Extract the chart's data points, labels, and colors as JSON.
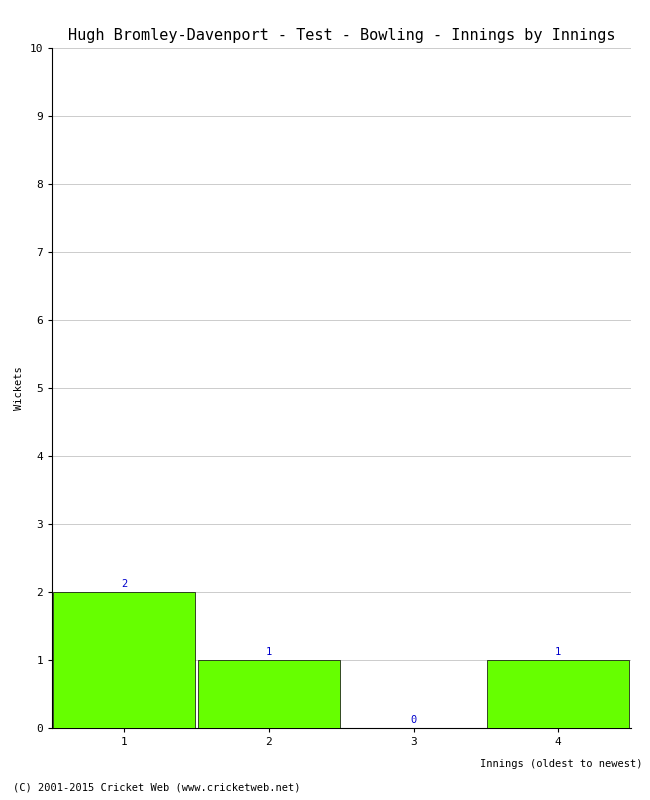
{
  "title": "Hugh Bromley-Davenport - Test - Bowling - Innings by Innings",
  "xlabel": "Innings (oldest to newest)",
  "ylabel": "Wickets",
  "categories": [
    1,
    2,
    3,
    4
  ],
  "values": [
    2,
    1,
    0,
    1
  ],
  "bar_color": "#66ff00",
  "bar_edge_color": "#000000",
  "ylim": [
    0,
    10
  ],
  "yticks": [
    0,
    1,
    2,
    3,
    4,
    5,
    6,
    7,
    8,
    9,
    10
  ],
  "xticks": [
    1,
    2,
    3,
    4
  ],
  "label_color": "#0000cc",
  "label_fontsize": 7.5,
  "background_color": "#ffffff",
  "grid_color": "#cccccc",
  "title_fontsize": 11,
  "axis_label_fontsize": 7.5,
  "tick_fontsize": 8,
  "footer_text": "(C) 2001-2015 Cricket Web (www.cricketweb.net)",
  "footer_fontsize": 7.5,
  "xlim": [
    0.5,
    4.5
  ]
}
